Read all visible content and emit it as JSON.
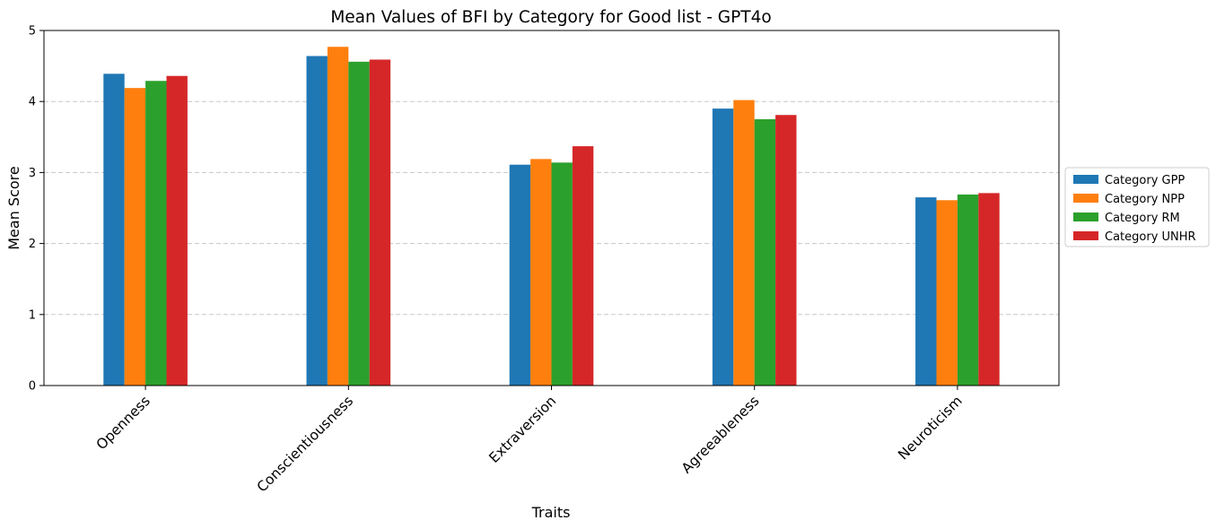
{
  "chart_data": {
    "type": "bar",
    "title": "Mean Values of BFI by Category for Good list - GPT4o",
    "xlabel": "Traits",
    "ylabel": "Mean Score",
    "categories": [
      "Openness",
      "Conscientiousness",
      "Extraversion",
      "Agreeableness",
      "Neuroticism"
    ],
    "series": [
      {
        "name": "Category GPP",
        "color": "#1f77b4",
        "values": [
          4.39,
          4.64,
          3.11,
          3.9,
          2.65
        ]
      },
      {
        "name": "Category NPP",
        "color": "#ff7f0e",
        "values": [
          4.19,
          4.77,
          3.19,
          4.02,
          2.61
        ]
      },
      {
        "name": "Category RM",
        "color": "#2ca02c",
        "values": [
          4.29,
          4.56,
          3.14,
          3.75,
          2.69
        ]
      },
      {
        "name": "Category UNHR",
        "color": "#d62728",
        "values": [
          4.36,
          4.59,
          3.37,
          3.81,
          2.71
        ]
      }
    ],
    "ylim": [
      0,
      5
    ],
    "yticks": [
      0,
      1,
      2,
      3,
      4,
      5
    ],
    "grid": "y-dashed",
    "legend_position": "right-center"
  }
}
